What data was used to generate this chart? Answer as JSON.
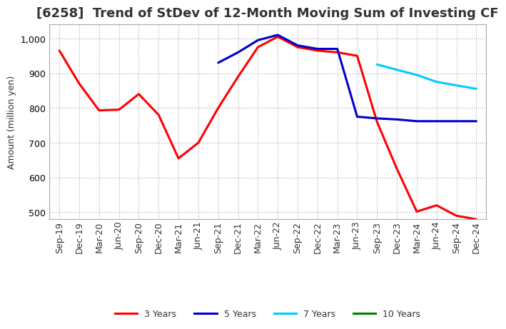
{
  "title": "[6258]  Trend of StDev of 12-Month Moving Sum of Investing CF",
  "ylabel": "Amount (million yen)",
  "background_color": "#ffffff",
  "plot_bg_color": "#ffffff",
  "grid_color": "#aaaaaa",
  "x_labels": [
    "Sep-19",
    "Dec-19",
    "Mar-20",
    "Jun-20",
    "Sep-20",
    "Dec-20",
    "Mar-21",
    "Jun-21",
    "Sep-21",
    "Dec-21",
    "Mar-22",
    "Jun-22",
    "Sep-22",
    "Dec-22",
    "Mar-23",
    "Jun-23",
    "Sep-23",
    "Dec-23",
    "Mar-24",
    "Jun-24",
    "Sep-24",
    "Dec-24"
  ],
  "ylim": [
    480,
    1040
  ],
  "yticks": [
    500,
    600,
    700,
    800,
    900,
    1000
  ],
  "series": {
    "3 Years": {
      "color": "#ff0000",
      "x": [
        0,
        1,
        2,
        3,
        4,
        5,
        6,
        7,
        8,
        9,
        10,
        11,
        12,
        13,
        14,
        15,
        16,
        17,
        18,
        19,
        20,
        21
      ],
      "y": [
        965,
        870,
        793,
        795,
        840,
        780,
        655,
        700,
        800,
        890,
        975,
        1005,
        975,
        965,
        960,
        950,
        760,
        625,
        502,
        520,
        490,
        480
      ]
    },
    "5 Years": {
      "color": "#0000cc",
      "x": [
        8,
        9,
        10,
        11,
        12,
        13,
        14,
        15,
        16,
        17,
        18,
        19,
        20,
        21
      ],
      "y": [
        930,
        960,
        995,
        1010,
        980,
        970,
        970,
        775,
        770,
        767,
        762,
        762,
        762,
        762
      ]
    },
    "7 Years": {
      "color": "#00ccff",
      "x": [
        16,
        17,
        18,
        19,
        20,
        21
      ],
      "y": [
        925,
        910,
        895,
        875,
        865,
        855
      ]
    },
    "10 Years": {
      "color": "#008000",
      "x": [],
      "y": []
    }
  },
  "legend_entries": [
    "3 Years",
    "5 Years",
    "7 Years",
    "10 Years"
  ],
  "legend_colors": [
    "#ff0000",
    "#0000cc",
    "#00ccff",
    "#008000"
  ],
  "line_width": 2.2,
  "title_fontsize": 13,
  "axis_label_fontsize": 9,
  "tick_fontsize": 9,
  "legend_fontsize": 9
}
